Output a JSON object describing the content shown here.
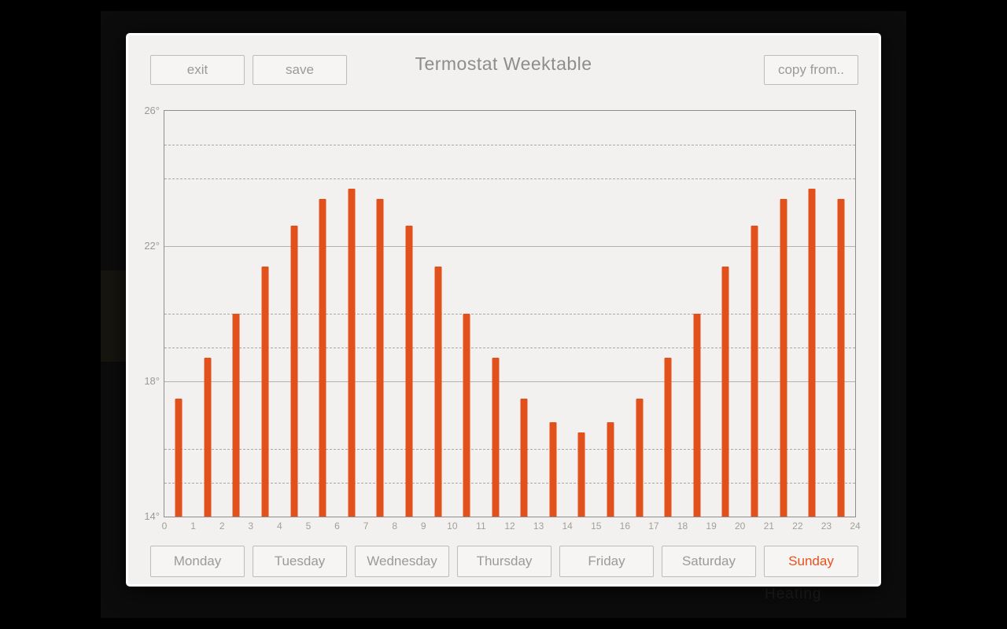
{
  "window": {
    "title": "Termostat Weektable",
    "exit_label": "exit",
    "save_label": "save",
    "copy_from_label": "copy from..",
    "watermark": "Heating"
  },
  "chart_data": {
    "type": "bar",
    "title": "Termostat Weektable",
    "xlabel": "",
    "ylabel": "",
    "ylim": [
      14,
      26
    ],
    "yticks": [
      26,
      22,
      18,
      14
    ],
    "ytick_labels": [
      "26°",
      "22°",
      "18°",
      "14°"
    ],
    "grid_solid_degrees": [
      22,
      18
    ],
    "grid_dashed_degrees": [
      25,
      24,
      20,
      19,
      16,
      15
    ],
    "hours": [
      0,
      1,
      2,
      3,
      4,
      5,
      6,
      7,
      8,
      9,
      10,
      11,
      12,
      13,
      14,
      15,
      16,
      17,
      18,
      19,
      20,
      21,
      22,
      23
    ],
    "values": [
      17.5,
      18.7,
      20.0,
      21.4,
      22.6,
      23.4,
      23.7,
      23.4,
      22.6,
      21.4,
      20.0,
      18.7,
      17.5,
      16.8,
      16.5,
      16.8,
      17.5,
      18.7,
      20.0,
      21.4,
      22.6,
      23.4,
      23.7,
      23.4
    ],
    "xtick_labels": [
      "0",
      "1",
      "2",
      "3",
      "4",
      "5",
      "6",
      "7",
      "8",
      "9",
      "10",
      "11",
      "12",
      "13",
      "14",
      "15",
      "16",
      "17",
      "18",
      "19",
      "20",
      "21",
      "22",
      "23",
      "24"
    ],
    "bar_color": "#e2511b",
    "grid": "horizontal dashed per-degree, solid at labeled ticks",
    "legend": "none"
  },
  "days": [
    {
      "label": "Monday",
      "active": false
    },
    {
      "label": "Tuesday",
      "active": false
    },
    {
      "label": "Wednesday",
      "active": false
    },
    {
      "label": "Thursday",
      "active": false
    },
    {
      "label": "Friday",
      "active": false
    },
    {
      "label": "Saturday",
      "active": false
    },
    {
      "label": "Sunday",
      "active": true
    }
  ],
  "colors": {
    "accent": "#e8511c",
    "bar": "#e2511b",
    "panel_bg": "#f2f1ef",
    "muted_text": "#9a9a98"
  }
}
